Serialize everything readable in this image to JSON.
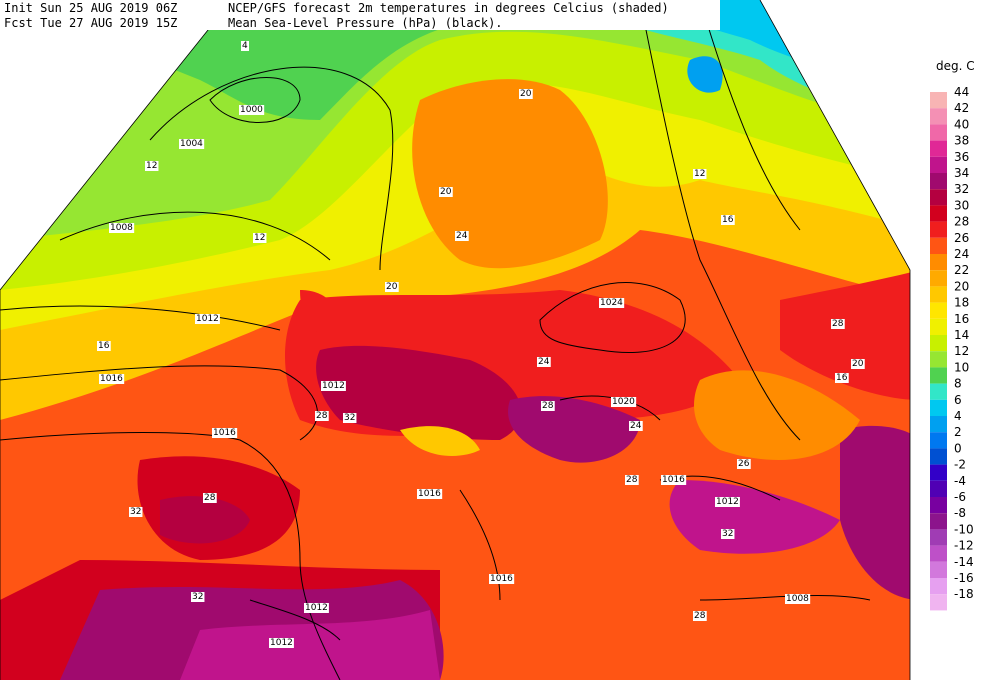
{
  "header": {
    "init": "Init  Sun 25 AUG 2019 06Z",
    "fcst": "Fcst Tue 27 AUG 2019 15Z",
    "line1": "NCEP/GFS forecast 2m temperatures in degrees Celcius (shaded)",
    "line2": "Mean Sea-Level Pressure (hPa) (black)."
  },
  "colorbar": {
    "title": "deg. C",
    "levels": [
      {
        "label": "44",
        "color": "#f8b4b4"
      },
      {
        "label": "42",
        "color": "#f490b4"
      },
      {
        "label": "40",
        "color": "#f068a8"
      },
      {
        "label": "38",
        "color": "#e02896"
      },
      {
        "label": "36",
        "color": "#c0148c"
      },
      {
        "label": "34",
        "color": "#a00a6e"
      },
      {
        "label": "32",
        "color": "#b40040"
      },
      {
        "label": "30",
        "color": "#d2001e"
      },
      {
        "label": "28",
        "color": "#f01e1e"
      },
      {
        "label": "26",
        "color": "#ff5514"
      },
      {
        "label": "24",
        "color": "#ff8c00"
      },
      {
        "label": "22",
        "color": "#ffaa00"
      },
      {
        "label": "20",
        "color": "#ffc800"
      },
      {
        "label": "18",
        "color": "#ffe600"
      },
      {
        "label": "16",
        "color": "#f0f000"
      },
      {
        "label": "14",
        "color": "#c8f000"
      },
      {
        "label": "12",
        "color": "#96e632"
      },
      {
        "label": "10",
        "color": "#50d250"
      },
      {
        "label": "8",
        "color": "#32e6c8"
      },
      {
        "label": "6",
        "color": "#00c8f0"
      },
      {
        "label": "4",
        "color": "#00a0f0"
      },
      {
        "label": "2",
        "color": "#0078f0"
      },
      {
        "label": "0",
        "color": "#0050d2"
      },
      {
        "label": "-2",
        "color": "#3200c8"
      },
      {
        "label": "-4",
        "color": "#5000b4"
      },
      {
        "label": "-6",
        "color": "#7800a0"
      },
      {
        "label": "-8",
        "color": "#8c148c"
      },
      {
        "label": "-10",
        "color": "#a03cb4"
      },
      {
        "label": "-12",
        "color": "#be50c8"
      },
      {
        "label": "-14",
        "color": "#d278dc"
      },
      {
        "label": "-16",
        "color": "#e6a0f0"
      },
      {
        "label": "-18",
        "color": "#f0b4f0"
      }
    ]
  },
  "map": {
    "isobar_labels": [
      "1000",
      "1004",
      "1008",
      "1012",
      "1016",
      "1016",
      "1012",
      "1024",
      "1020",
      "1016",
      "1016",
      "1012",
      "1016",
      "1012",
      "1012",
      "1008"
    ],
    "temp_labels": [
      "4",
      "12",
      "12",
      "16",
      "20",
      "20",
      "24",
      "24",
      "28",
      "28",
      "32",
      "32",
      "28",
      "16",
      "20",
      "12",
      "16",
      "20",
      "28",
      "24",
      "28",
      "32",
      "28",
      "26",
      "32"
    ]
  }
}
